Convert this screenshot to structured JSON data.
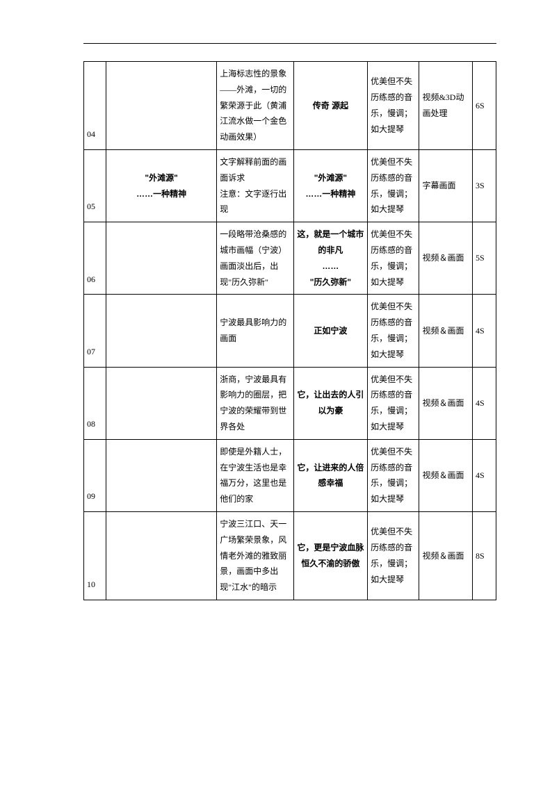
{
  "rows": [
    {
      "num": "04",
      "img": "",
      "desc": "上海标志性的景象——外滩，一切的繁荣源于此（黄浦江流水做一个金色动画效果）",
      "title": "传奇  源起",
      "audio": "优美但不失历练感的音乐，慢调；如大提琴",
      "video": "视频&3D动画处理",
      "time": "6S"
    },
    {
      "num": "05",
      "img": "\"外滩源\"\n……一种精神",
      "desc": "文字解释前面的画面诉求\n注意：文字逐行出现",
      "title": "\"外滩源\"\n……一种精神",
      "audio": "优美但不失历练感的音乐，慢调；如大提琴",
      "video": "字幕画面",
      "time": "3S"
    },
    {
      "num": "06",
      "img": "",
      "desc": "一段略带沧桑感的城市画幅（宁波）\n画面淡出后，出现\"历久弥新\"",
      "title": "这，就是一个城市的非凡\n……\n\"历久弥新\"",
      "audio": "优美但不失历练感的音乐，慢调；如大提琴",
      "video": "视频＆画面",
      "time": "5S"
    },
    {
      "num": "07",
      "img": "",
      "desc": "宁波最具影响力的画面",
      "title": "正如宁波",
      "audio": "优美但不失历练感的音乐，慢调；如大提琴",
      "video": "视频＆画面",
      "time": "4S"
    },
    {
      "num": "08",
      "img": "",
      "desc": "浙商，宁波最具有影响力的圈层，把宁波的荣耀带到世界各处",
      "title": "它，让出去的人引以为豪",
      "audio": "优美但不失历练感的音乐，慢调；如大提琴",
      "video": "视频＆画面",
      "time": "4S"
    },
    {
      "num": "09",
      "img": "",
      "desc": "即使是外籍人士，在宁波生活也是幸福万分，这里也是他们的家",
      "title": "它，让进来的人倍感幸福",
      "audio": "优美但不失历练感的音乐，慢调；如大提琴",
      "video": "视频＆画面",
      "time": "4S"
    },
    {
      "num": "10",
      "img": "",
      "desc": "宁波三江口、天一广场繁荣景象，风情老外滩的雅致丽景，画面中多出现\"江水\"的暗示",
      "title": "它，更是宁波血脉恒久不渝的骄傲",
      "audio": "优美但不失历练感的音乐，慢调；如大提琴",
      "video": "视频＆画面",
      "time": "8S"
    }
  ]
}
